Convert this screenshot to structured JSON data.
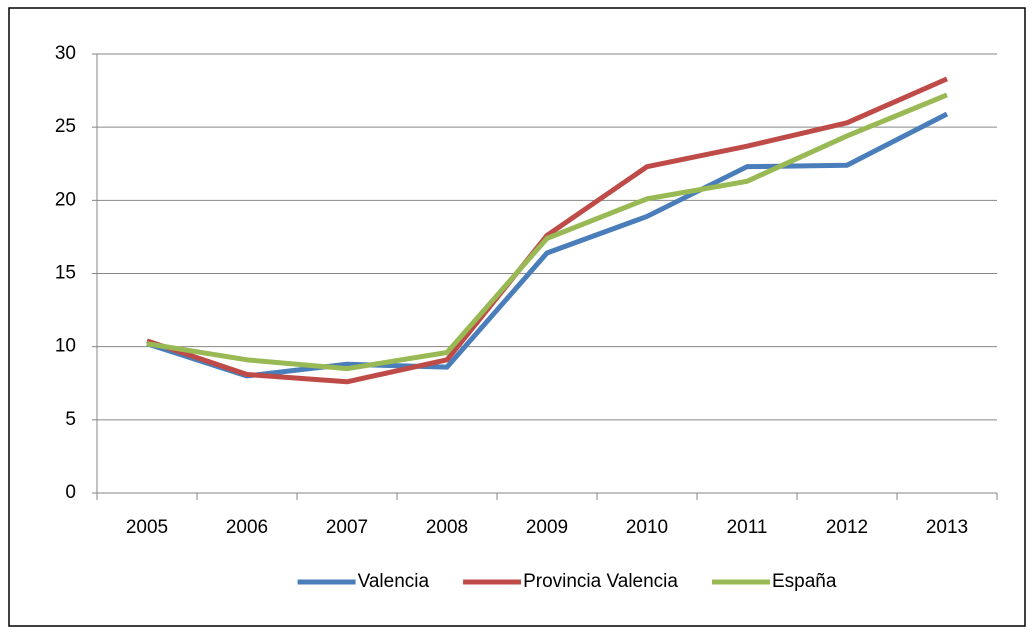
{
  "chart_data": {
    "type": "line",
    "categories": [
      "2005",
      "2006",
      "2007",
      "2008",
      "2009",
      "2010",
      "2011",
      "2012",
      "2013"
    ],
    "series": [
      {
        "name": "Valencia",
        "color": "#4a7ebb",
        "values": [
          10.2,
          8.0,
          8.8,
          8.6,
          16.4,
          18.9,
          22.3,
          22.4,
          25.9
        ]
      },
      {
        "name": "Provincia Valencia",
        "color": "#be4b48",
        "values": [
          10.4,
          8.1,
          7.6,
          9.1,
          17.6,
          22.3,
          23.7,
          25.3,
          28.3
        ]
      },
      {
        "name": "España",
        "color": "#98b954",
        "values": [
          10.2,
          9.1,
          8.5,
          9.6,
          17.4,
          20.1,
          21.3,
          24.4,
          27.2
        ]
      }
    ],
    "ylim": [
      0,
      30
    ],
    "yticks": [
      0,
      5,
      10,
      15,
      20,
      25,
      30
    ],
    "grid": true,
    "legend": "bottom"
  }
}
